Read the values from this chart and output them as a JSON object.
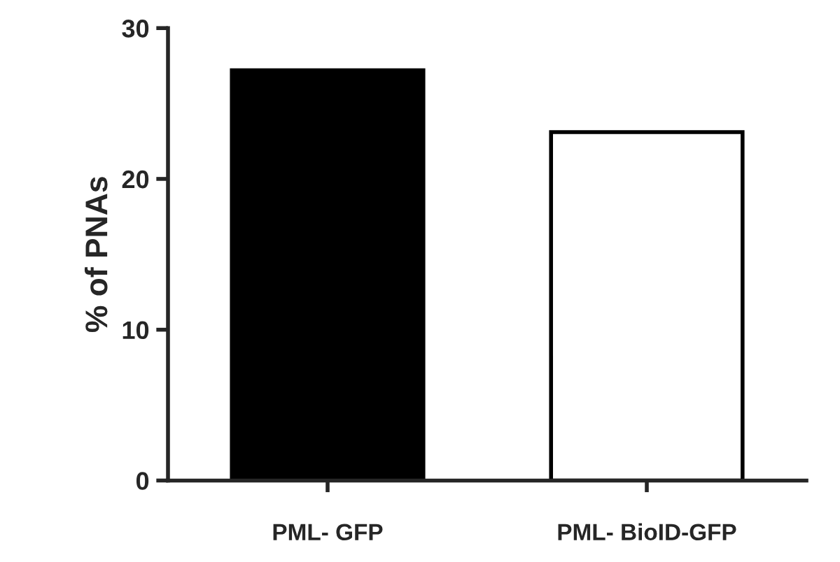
{
  "chart_data": {
    "type": "bar",
    "ylabel": "% of PNAs",
    "categories": [
      "PML- GFP",
      "PML- BioID-GFP"
    ],
    "values": [
      27.2,
      23.1
    ],
    "colors": [
      "#000000",
      "#ffffff"
    ],
    "ylim": [
      0,
      30
    ],
    "yticks": [
      0,
      10,
      20,
      30
    ],
    "grid": false
  }
}
